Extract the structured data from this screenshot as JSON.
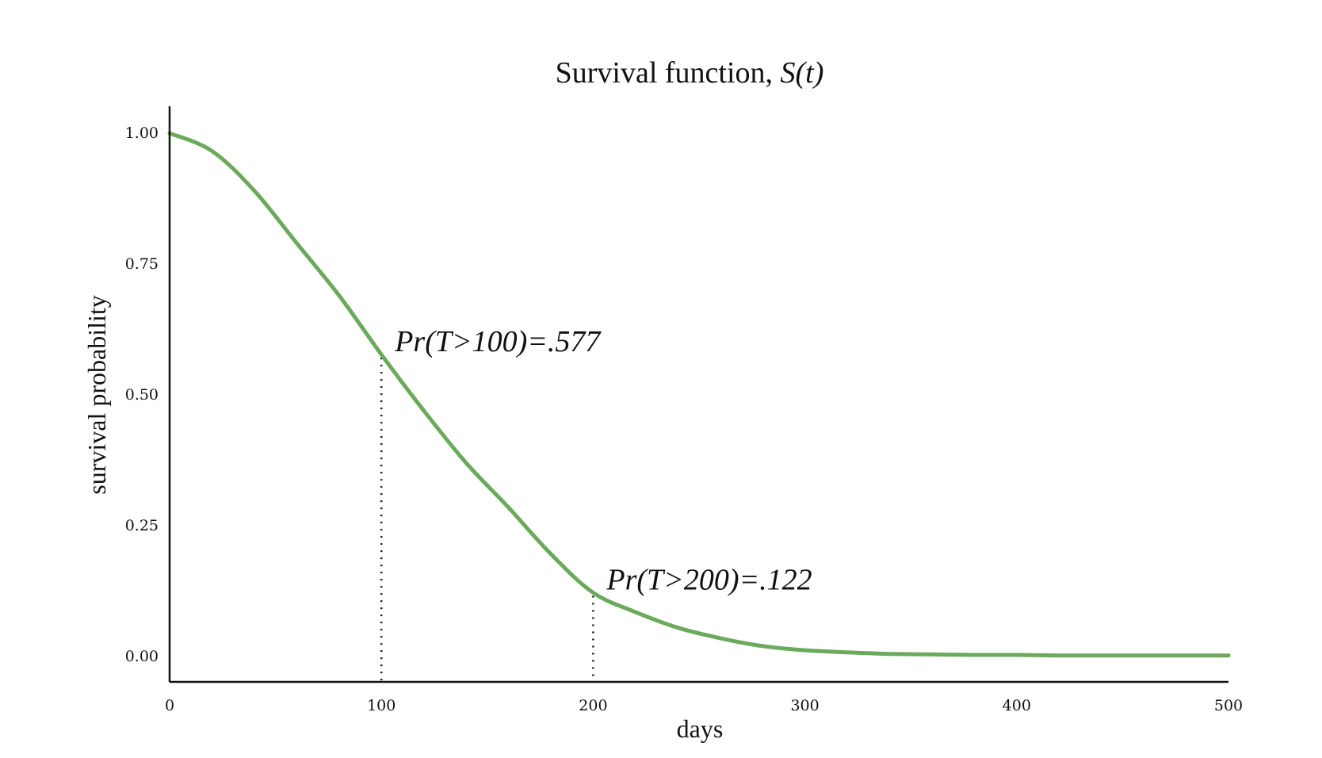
{
  "chart_data": {
    "type": "line",
    "title": "Survival function, ",
    "title_italic": "S(t)",
    "xlabel": "days",
    "ylabel": "survival probability",
    "xlim": [
      0,
      500
    ],
    "ylim": [
      0,
      1
    ],
    "x_ticks": [
      "0",
      "100",
      "200",
      "300",
      "400",
      "500"
    ],
    "y_ticks": [
      "0.00",
      "0.25",
      "0.50",
      "0.75",
      "1.00"
    ],
    "grid": false,
    "series": [
      {
        "color": "#6aaa5a",
        "x": [
          0,
          20,
          40,
          60,
          80,
          100,
          120,
          140,
          160,
          180,
          200,
          220,
          240,
          260,
          280,
          300,
          320,
          340,
          360,
          380,
          400,
          420,
          440,
          460,
          480,
          500
        ],
        "y": [
          1.0,
          0.966,
          0.89,
          0.79,
          0.69,
          0.577,
          0.47,
          0.37,
          0.285,
          0.196,
          0.122,
          0.085,
          0.055,
          0.035,
          0.02,
          0.012,
          0.008,
          0.005,
          0.004,
          0.003,
          0.003,
          0.002,
          0.002,
          0.002,
          0.002,
          0.002
        ]
      }
    ],
    "annotations": [
      {
        "x": 100,
        "y": 0.577,
        "text": "Pr(T>100)=.577"
      },
      {
        "x": 200,
        "y": 0.122,
        "text": "Pr(T>200)=.122"
      }
    ]
  }
}
